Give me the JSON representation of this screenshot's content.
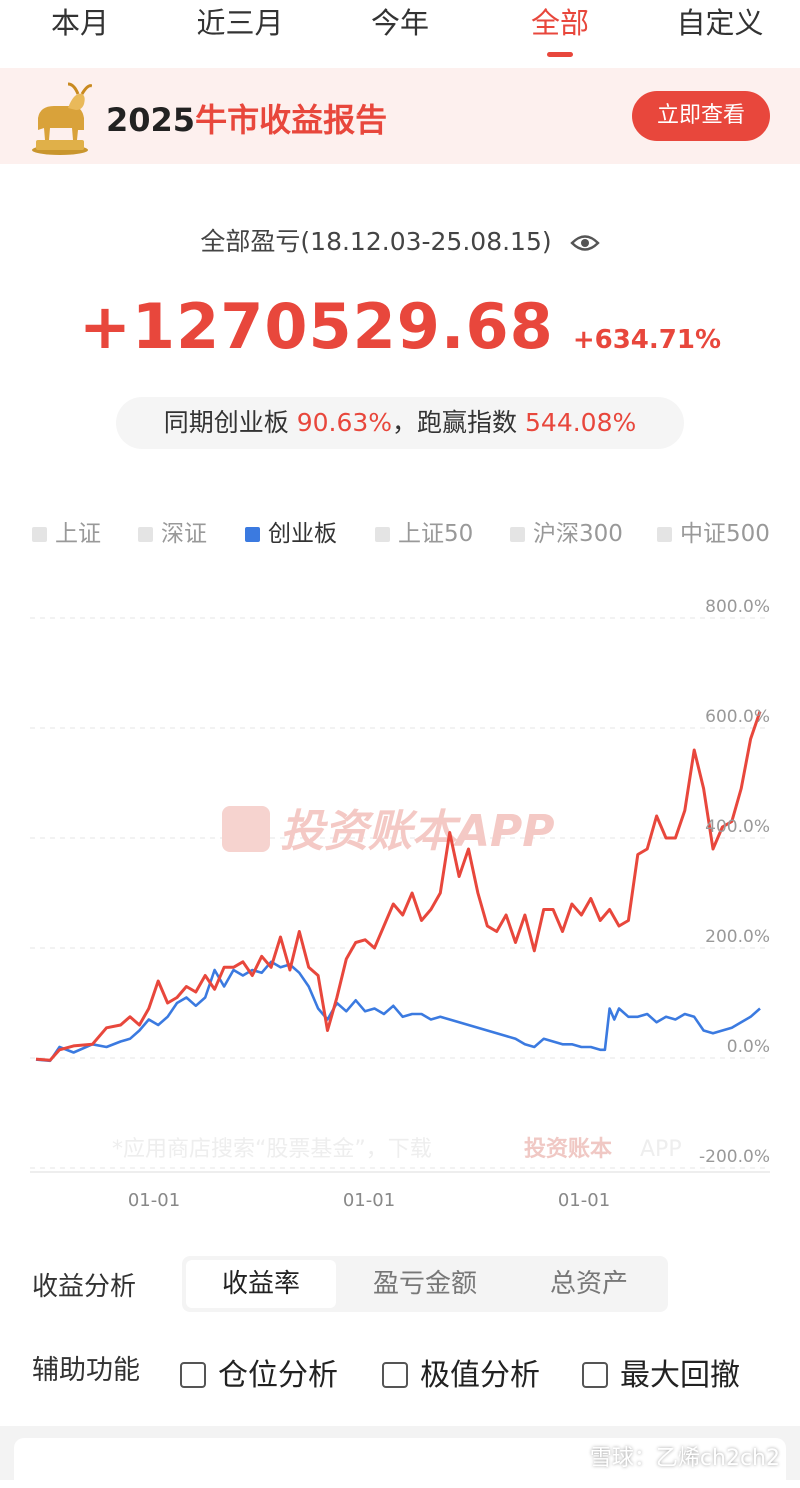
{
  "tabs": [
    {
      "label": "本月",
      "active": false
    },
    {
      "label": "近三月",
      "active": false
    },
    {
      "label": "今年",
      "active": false
    },
    {
      "label": "全部",
      "active": true
    },
    {
      "label": "自定义",
      "active": false
    }
  ],
  "banner": {
    "year": "2025",
    "text": "牛市收益报告",
    "button": "立即查看"
  },
  "summary": {
    "title": "全部盈亏(18.12.03-25.08.15)",
    "amount": "+1270529.68",
    "percent": "+634.71%",
    "compare_prefix": "同期创业板",
    "compare_value": "90.63%",
    "compare_sep": "，跑赢指数",
    "outperform_value": "544.08%"
  },
  "legend": [
    {
      "label": "上证",
      "active": false
    },
    {
      "label": "深证",
      "active": false
    },
    {
      "label": "创业板",
      "active": true
    },
    {
      "label": "上证50",
      "active": false
    },
    {
      "label": "沪深300",
      "active": false
    },
    {
      "label": "中证500",
      "active": false
    }
  ],
  "colors": {
    "accent": "#e8473c",
    "benchmark": "#3b7ae0"
  },
  "watermark": {
    "brand": "投资账本APP",
    "note_pre": "*应用商店搜索“股票基金”，下载",
    "note_brand": "投资账本",
    "note_app": "APP"
  },
  "chart_data": {
    "type": "line",
    "ylim": [
      -200,
      800
    ],
    "yticks": [
      "800.0%",
      "600.0%",
      "400.0%",
      "200.0%",
      "0.0%",
      "-200.0%"
    ],
    "xticks": [
      "01-01",
      "01-01",
      "01-01"
    ],
    "series": [
      {
        "color": "#e8473c",
        "points": [
          [
            0,
            -2
          ],
          [
            3,
            -4
          ],
          [
            5,
            15
          ],
          [
            8,
            22
          ],
          [
            12,
            25
          ],
          [
            15,
            55
          ],
          [
            18,
            60
          ],
          [
            20,
            75
          ],
          [
            22,
            60
          ],
          [
            24,
            90
          ],
          [
            26,
            140
          ],
          [
            28,
            100
          ],
          [
            30,
            110
          ],
          [
            32,
            130
          ],
          [
            34,
            120
          ],
          [
            36,
            150
          ],
          [
            38,
            125
          ],
          [
            40,
            165
          ],
          [
            42,
            165
          ],
          [
            44,
            175
          ],
          [
            46,
            150
          ],
          [
            48,
            185
          ],
          [
            50,
            165
          ],
          [
            52,
            220
          ],
          [
            54,
            160
          ],
          [
            56,
            230
          ],
          [
            58,
            165
          ],
          [
            60,
            150
          ],
          [
            62,
            50
          ],
          [
            64,
            110
          ],
          [
            66,
            180
          ],
          [
            68,
            210
          ],
          [
            70,
            215
          ],
          [
            72,
            200
          ],
          [
            74,
            240
          ],
          [
            76,
            280
          ],
          [
            78,
            260
          ],
          [
            80,
            300
          ],
          [
            82,
            250
          ],
          [
            84,
            270
          ],
          [
            86,
            300
          ],
          [
            88,
            410
          ],
          [
            90,
            330
          ],
          [
            92,
            380
          ],
          [
            94,
            300
          ],
          [
            96,
            240
          ],
          [
            98,
            230
          ],
          [
            100,
            260
          ],
          [
            102,
            210
          ],
          [
            104,
            260
          ],
          [
            106,
            195
          ],
          [
            108,
            270
          ],
          [
            110,
            270
          ],
          [
            112,
            230
          ],
          [
            114,
            280
          ],
          [
            116,
            260
          ],
          [
            118,
            290
          ],
          [
            120,
            250
          ],
          [
            122,
            270
          ],
          [
            124,
            240
          ],
          [
            126,
            250
          ],
          [
            128,
            370
          ],
          [
            130,
            380
          ],
          [
            132,
            440
          ],
          [
            134,
            400
          ],
          [
            136,
            400
          ],
          [
            138,
            450
          ],
          [
            140,
            560
          ],
          [
            142,
            490
          ],
          [
            144,
            380
          ],
          [
            146,
            420
          ],
          [
            148,
            430
          ],
          [
            150,
            490
          ],
          [
            152,
            580
          ],
          [
            154,
            630
          ]
        ]
      },
      {
        "color": "#3b7ae0",
        "points": [
          [
            0,
            -3
          ],
          [
            3,
            -5
          ],
          [
            5,
            20
          ],
          [
            8,
            10
          ],
          [
            12,
            25
          ],
          [
            15,
            20
          ],
          [
            18,
            30
          ],
          [
            20,
            35
          ],
          [
            22,
            50
          ],
          [
            24,
            70
          ],
          [
            26,
            60
          ],
          [
            28,
            75
          ],
          [
            30,
            100
          ],
          [
            32,
            110
          ],
          [
            34,
            95
          ],
          [
            36,
            110
          ],
          [
            38,
            160
          ],
          [
            40,
            130
          ],
          [
            42,
            160
          ],
          [
            44,
            150
          ],
          [
            46,
            160
          ],
          [
            48,
            155
          ],
          [
            50,
            175
          ],
          [
            52,
            165
          ],
          [
            54,
            170
          ],
          [
            56,
            155
          ],
          [
            58,
            130
          ],
          [
            60,
            90
          ],
          [
            62,
            70
          ],
          [
            64,
            100
          ],
          [
            66,
            85
          ],
          [
            68,
            105
          ],
          [
            70,
            85
          ],
          [
            72,
            90
          ],
          [
            74,
            80
          ],
          [
            76,
            95
          ],
          [
            78,
            75
          ],
          [
            80,
            80
          ],
          [
            82,
            80
          ],
          [
            84,
            70
          ],
          [
            86,
            75
          ],
          [
            88,
            70
          ],
          [
            90,
            65
          ],
          [
            92,
            60
          ],
          [
            94,
            55
          ],
          [
            96,
            50
          ],
          [
            98,
            45
          ],
          [
            100,
            40
          ],
          [
            102,
            35
          ],
          [
            104,
            25
          ],
          [
            106,
            20
          ],
          [
            108,
            35
          ],
          [
            110,
            30
          ],
          [
            112,
            25
          ],
          [
            114,
            25
          ],
          [
            116,
            20
          ],
          [
            118,
            20
          ],
          [
            120,
            15
          ],
          [
            121,
            15
          ],
          [
            122,
            90
          ],
          [
            123,
            70
          ],
          [
            124,
            90
          ],
          [
            126,
            75
          ],
          [
            128,
            75
          ],
          [
            130,
            80
          ],
          [
            132,
            65
          ],
          [
            134,
            75
          ],
          [
            136,
            70
          ],
          [
            138,
            80
          ],
          [
            140,
            75
          ],
          [
            142,
            50
          ],
          [
            144,
            45
          ],
          [
            146,
            50
          ],
          [
            148,
            55
          ],
          [
            150,
            65
          ],
          [
            152,
            75
          ],
          [
            154,
            90
          ]
        ]
      }
    ]
  },
  "analysis": {
    "label": "收益分析",
    "options": [
      "收益率",
      "盈亏金额",
      "总资产"
    ],
    "active": 0
  },
  "aux": {
    "label": "辅助功能",
    "options": [
      "仓位分析",
      "极值分析",
      "最大回撤"
    ]
  },
  "credit": "雪球：乙烯ch2ch2"
}
